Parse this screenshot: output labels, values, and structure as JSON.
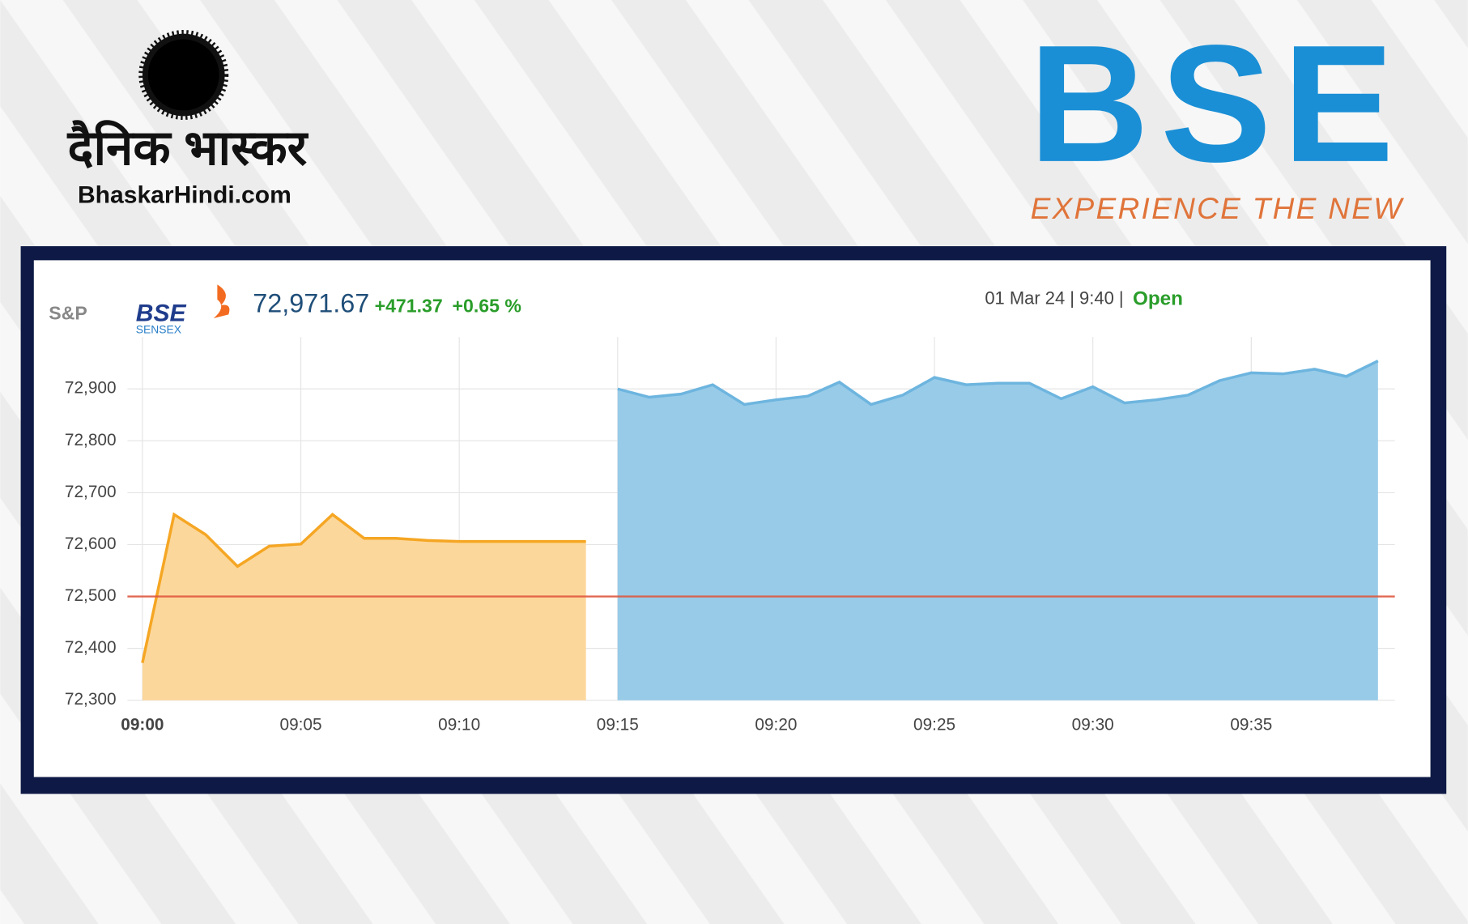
{
  "header": {
    "left_logo": "दैनिक भास्कर",
    "left_site": "BhaskarHindi.com",
    "right_logo": "BSE",
    "right_tagline": "EXPERIENCE THE NEW"
  },
  "widget": {
    "brand_sp": "S&P",
    "brand_bse": "BSE",
    "brand_sensex": "SENSEX",
    "price": "72,971.67",
    "change": "+471.37",
    "change_pct": "+0.65 %",
    "timestamp": "01 Mar 24 | 9:40 |",
    "status": "Open"
  },
  "chart_data": {
    "type": "area",
    "x": [
      "09:00",
      "09:01",
      "09:02",
      "09:03",
      "09:04",
      "09:05",
      "09:06",
      "09:07",
      "09:08",
      "09:09",
      "09:10",
      "09:11",
      "09:12",
      "09:13",
      "09:14",
      "09:15",
      "09:16",
      "09:17",
      "09:18",
      "09:19",
      "09:20",
      "09:21",
      "09:22",
      "09:23",
      "09:24",
      "09:25",
      "09:26",
      "09:27",
      "09:28",
      "09:29",
      "09:30",
      "09:31",
      "09:32",
      "09:33",
      "09:34",
      "09:35",
      "09:36",
      "09:37",
      "09:38",
      "09:39"
    ],
    "series": [
      {
        "color": "#f5a623",
        "fill": "#fcd79b",
        "values": [
          72372,
          72658,
          72619,
          72558,
          72597,
          72601,
          72658,
          72612,
          72612,
          72608,
          72606,
          72606,
          72606,
          72606,
          72606,
          null,
          null,
          null,
          null,
          null,
          null,
          null,
          null,
          null,
          null,
          null,
          null,
          null,
          null,
          null,
          null,
          null,
          null,
          null,
          null,
          null,
          null,
          null,
          null,
          null
        ]
      },
      {
        "color": "#6db5df",
        "fill": "#98cbe8",
        "values": [
          null,
          null,
          null,
          null,
          null,
          null,
          null,
          null,
          null,
          null,
          null,
          null,
          null,
          null,
          null,
          72900,
          72884,
          72890,
          72908,
          72870,
          72879,
          72886,
          72913,
          72870,
          72888,
          72922,
          72908,
          72911,
          72911,
          72881,
          72904,
          72873,
          72879,
          72888,
          72916,
          72931,
          72929,
          72938,
          72924,
          72954
        ]
      }
    ],
    "reference_line": 72500,
    "reference_color": "#e0533a",
    "ylim": [
      72300,
      73000
    ],
    "yticks": [
      {
        "value": 72300,
        "label": "72,300"
      },
      {
        "value": 72400,
        "label": "72,400"
      },
      {
        "value": 72500,
        "label": "72,500"
      },
      {
        "value": 72600,
        "label": "72,600"
      },
      {
        "value": 72700,
        "label": "72,700"
      },
      {
        "value": 72800,
        "label": "72,800"
      },
      {
        "value": 72900,
        "label": "72,900"
      }
    ],
    "xtick_every": 5,
    "grid": true
  }
}
